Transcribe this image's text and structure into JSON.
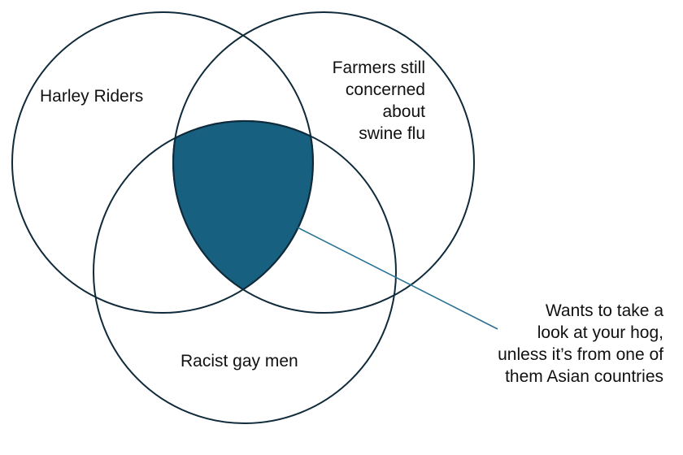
{
  "diagram": {
    "type": "venn",
    "sets": [
      {
        "label": "Harley Riders"
      },
      {
        "label_lines": [
          "Farmers still",
          "concerned",
          "about",
          "swine flu"
        ]
      },
      {
        "label": "Racist gay men"
      }
    ],
    "highlighted_region": "intersection of all three sets",
    "callout_lines": [
      "Wants to take a",
      "look at your hog,",
      "unless it’s from one of",
      "them Asian countries"
    ],
    "colors": {
      "outline": "#0f2a3a",
      "fill": "#17607f",
      "callout_line": "#2a7294"
    }
  }
}
